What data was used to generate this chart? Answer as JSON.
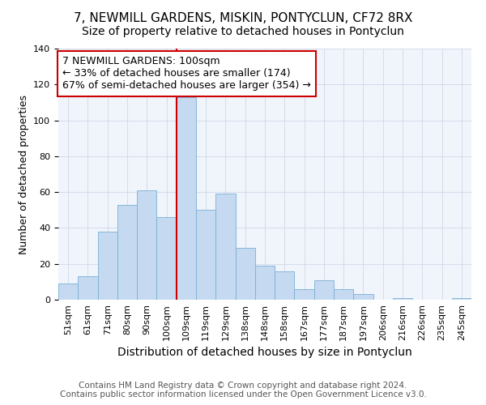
{
  "title": "7, NEWMILL GARDENS, MISKIN, PONTYCLUN, CF72 8RX",
  "subtitle": "Size of property relative to detached houses in Pontyclun",
  "xlabel": "Distribution of detached houses by size in Pontyclun",
  "ylabel": "Number of detached properties",
  "bar_labels": [
    "51sqm",
    "61sqm",
    "71sqm",
    "80sqm",
    "90sqm",
    "100sqm",
    "109sqm",
    "119sqm",
    "129sqm",
    "138sqm",
    "148sqm",
    "158sqm",
    "167sqm",
    "177sqm",
    "187sqm",
    "197sqm",
    "206sqm",
    "216sqm",
    "226sqm",
    "235sqm",
    "245sqm"
  ],
  "bar_values": [
    9,
    13,
    38,
    53,
    61,
    46,
    113,
    50,
    59,
    29,
    19,
    16,
    6,
    11,
    6,
    3,
    0,
    1,
    0,
    0,
    1
  ],
  "bar_color": "#c5d9f1",
  "bar_edge_color": "#7ab0d4",
  "vline_color": "#cc0000",
  "annotation_line1": "7 NEWMILL GARDENS: 100sqm",
  "annotation_line2": "← 33% of detached houses are smaller (174)",
  "annotation_line3": "67% of semi-detached houses are larger (354) →",
  "annotation_box_color": "#ffffff",
  "annotation_box_edge": "#cc0000",
  "ylim": [
    0,
    140
  ],
  "yticks": [
    0,
    20,
    40,
    60,
    80,
    100,
    120,
    140
  ],
  "footer": "Contains HM Land Registry data © Crown copyright and database right 2024.\nContains public sector information licensed under the Open Government Licence v3.0.",
  "title_fontsize": 11,
  "subtitle_fontsize": 10,
  "xlabel_fontsize": 10,
  "ylabel_fontsize": 9,
  "tick_fontsize": 8,
  "annotation_fontsize": 9,
  "footer_fontsize": 7.5,
  "bg_color": "#f0f4fb"
}
